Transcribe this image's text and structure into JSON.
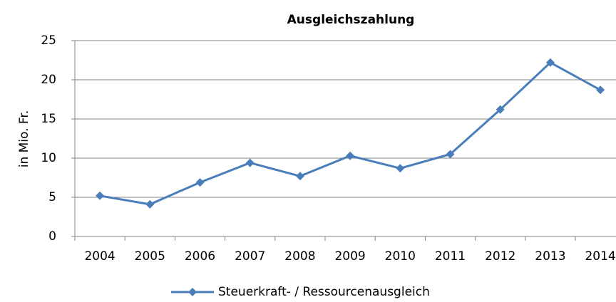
{
  "chart_data": {
    "type": "line",
    "title": "Ausgleichszahlung",
    "y_label": "in Mio. Fr.",
    "categories": [
      "2004",
      "2005",
      "2006",
      "2007",
      "2008",
      "2009",
      "2010",
      "2011",
      "2012",
      "2013",
      "2014"
    ],
    "series": [
      {
        "name": "Steuerkraft- / Ressourcenausgleich",
        "color": "#4a7ebb",
        "values": [
          5.2,
          4.1,
          6.9,
          9.4,
          7.7,
          10.3,
          8.7,
          10.5,
          16.2,
          22.2,
          18.7
        ]
      }
    ],
    "ylim": [
      0,
      25
    ],
    "yticks": [
      0,
      5,
      10,
      15,
      20,
      25
    ],
    "grid": true,
    "legend": "bottom"
  }
}
